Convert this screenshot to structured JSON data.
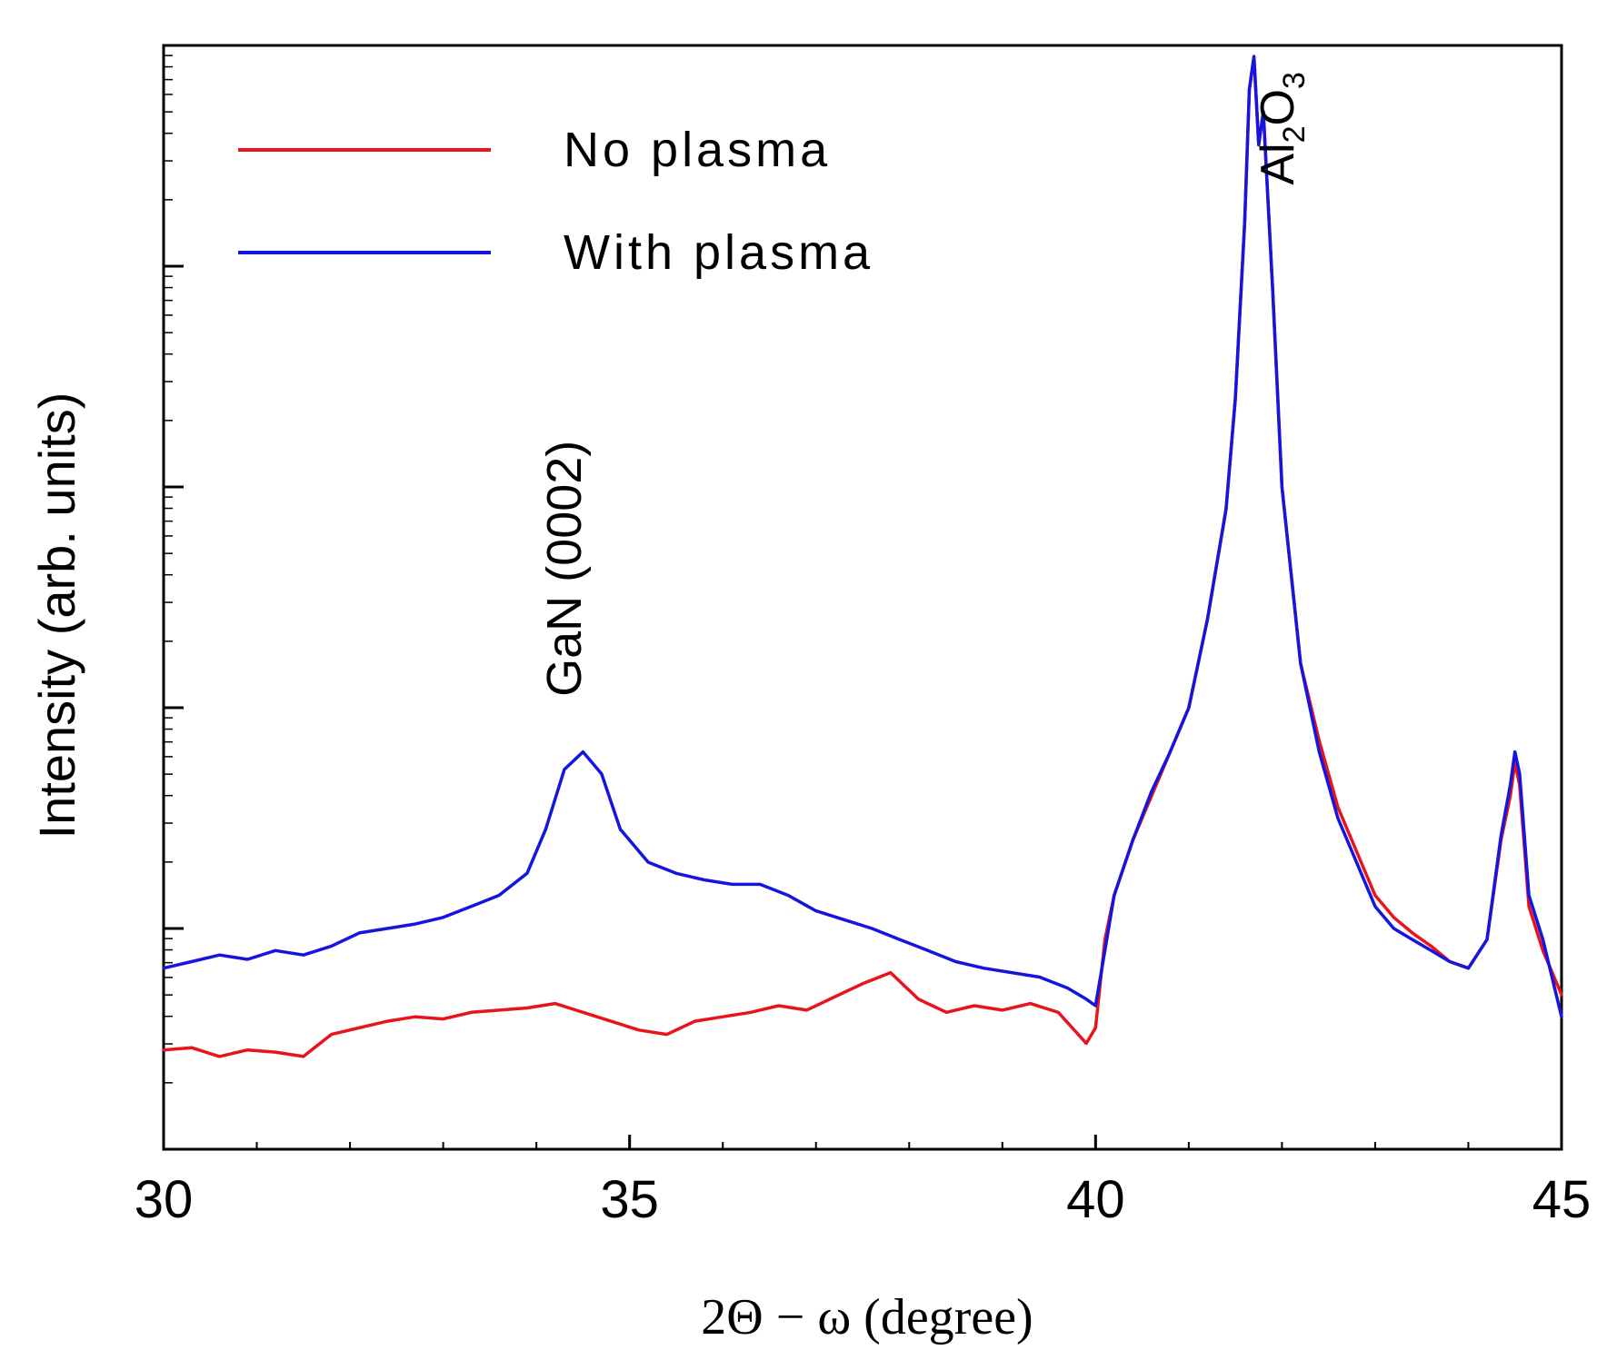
{
  "chart_data": {
    "type": "line",
    "title": "",
    "xlabel": "2Θ − ω (degree)",
    "ylabel": "Intensity (arb. units)",
    "yscale": "log",
    "xlim": [
      30,
      45
    ],
    "ylim_log10": [
      0,
      5
    ],
    "xticks": [
      30,
      35,
      40,
      45
    ],
    "xtick_labels": [
      "30",
      "35",
      "40",
      "45"
    ],
    "ytick_labels_shown": false,
    "grid": false,
    "legend_position": "top-left",
    "colors": {
      "no_plasma": "#e8141b",
      "with_plasma": "#1515e0",
      "axis": "#000000"
    },
    "series": [
      {
        "name": "No plasma",
        "color": "#e8141b",
        "x": [
          30.0,
          30.3,
          30.6,
          30.9,
          31.2,
          31.5,
          31.8,
          32.1,
          32.4,
          32.7,
          33.0,
          33.3,
          33.6,
          33.9,
          34.2,
          34.5,
          34.8,
          35.1,
          35.4,
          35.7,
          36.0,
          36.3,
          36.6,
          36.9,
          37.2,
          37.5,
          37.8,
          38.1,
          38.4,
          38.7,
          39.0,
          39.3,
          39.6,
          39.9,
          40.0,
          40.1,
          40.2,
          40.4,
          40.6,
          40.8,
          41.0,
          41.2,
          41.4,
          41.5,
          41.6,
          41.65,
          41.7,
          41.75,
          41.8,
          41.9,
          42.0,
          42.2,
          42.4,
          42.6,
          42.8,
          43.0,
          43.2,
          43.4,
          43.6,
          43.8,
          44.0,
          44.2,
          44.35,
          44.45,
          44.5,
          44.55,
          44.65,
          44.8,
          45.0
        ],
        "y_log10": [
          0.45,
          0.46,
          0.42,
          0.45,
          0.44,
          0.42,
          0.52,
          0.55,
          0.58,
          0.6,
          0.59,
          0.62,
          0.63,
          0.64,
          0.66,
          0.62,
          0.58,
          0.54,
          0.52,
          0.58,
          0.6,
          0.62,
          0.65,
          0.63,
          0.69,
          0.75,
          0.8,
          0.68,
          0.62,
          0.65,
          0.63,
          0.66,
          0.62,
          0.48,
          0.55,
          0.95,
          1.15,
          1.4,
          1.6,
          1.8,
          2.0,
          2.4,
          2.9,
          3.4,
          4.2,
          4.8,
          4.95,
          4.55,
          4.7,
          3.9,
          3.0,
          2.2,
          1.85,
          1.55,
          1.35,
          1.15,
          1.05,
          0.98,
          0.92,
          0.85,
          0.82,
          0.95,
          1.4,
          1.6,
          1.75,
          1.65,
          1.1,
          0.9,
          0.7
        ]
      },
      {
        "name": "With plasma",
        "color": "#1515e0",
        "x": [
          30.0,
          30.3,
          30.6,
          30.9,
          31.2,
          31.5,
          31.8,
          32.1,
          32.4,
          32.7,
          33.0,
          33.3,
          33.6,
          33.9,
          34.1,
          34.3,
          34.5,
          34.7,
          34.9,
          35.2,
          35.5,
          35.8,
          36.1,
          36.4,
          36.7,
          37.0,
          37.3,
          37.6,
          37.9,
          38.2,
          38.5,
          38.8,
          39.1,
          39.4,
          39.7,
          39.9,
          40.0,
          40.1,
          40.2,
          40.4,
          40.6,
          40.8,
          41.0,
          41.2,
          41.4,
          41.5,
          41.6,
          41.65,
          41.7,
          41.75,
          41.8,
          41.9,
          42.0,
          42.2,
          42.4,
          42.6,
          42.8,
          43.0,
          43.2,
          43.4,
          43.6,
          43.8,
          44.0,
          44.2,
          44.35,
          44.45,
          44.5,
          44.55,
          44.65,
          44.8,
          45.0
        ],
        "y_log10": [
          0.82,
          0.85,
          0.88,
          0.86,
          0.9,
          0.88,
          0.92,
          0.98,
          1.0,
          1.02,
          1.05,
          1.1,
          1.15,
          1.25,
          1.45,
          1.72,
          1.8,
          1.7,
          1.45,
          1.3,
          1.25,
          1.22,
          1.2,
          1.2,
          1.15,
          1.08,
          1.04,
          1.0,
          0.95,
          0.9,
          0.85,
          0.82,
          0.8,
          0.78,
          0.73,
          0.68,
          0.65,
          0.9,
          1.15,
          1.4,
          1.62,
          1.8,
          2.0,
          2.4,
          2.9,
          3.4,
          4.2,
          4.8,
          4.95,
          4.55,
          4.7,
          3.9,
          3.0,
          2.2,
          1.8,
          1.5,
          1.3,
          1.1,
          1.0,
          0.95,
          0.9,
          0.85,
          0.82,
          0.95,
          1.42,
          1.65,
          1.8,
          1.7,
          1.15,
          0.95,
          0.6
        ]
      }
    ],
    "legend": [
      {
        "label": "No plasma",
        "color": "#e8141b"
      },
      {
        "label": "With plasma",
        "color": "#1515e0"
      }
    ],
    "annotations": [
      {
        "text": "GaN (0002)",
        "x": 34.3,
        "y_log10": 2.05,
        "rotation": -90
      },
      {
        "text": "Al",
        "sub1": "2",
        "mid": "O",
        "sub2": "3",
        "x": 42.2,
        "y_log10": 4.45,
        "rotation": -90
      }
    ]
  }
}
